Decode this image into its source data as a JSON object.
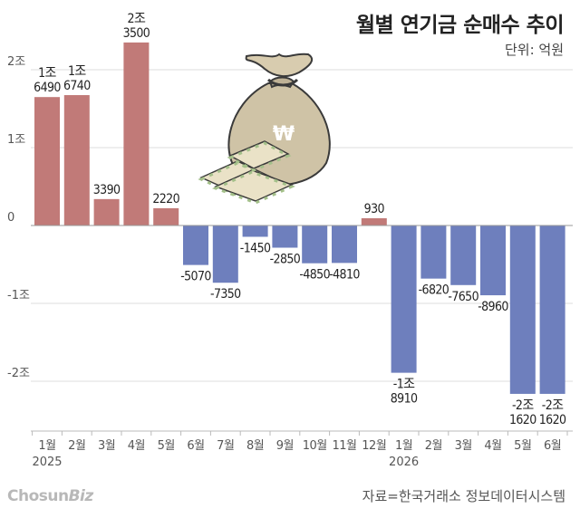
{
  "header": {
    "title": "월별 연기금 순매수 추이",
    "unit": "단위: 억원"
  },
  "footer": {
    "source": "자료=한국거래소 정보데이터시스템",
    "logo_main": "Chosun",
    "logo_sub": "Biz"
  },
  "colors": {
    "positive": "#c17a78",
    "negative": "#6e7fbd",
    "grid": "#dcdcdc",
    "axis": "#999999"
  },
  "chart_data": {
    "type": "bar",
    "title": "월별 연기금 순매수 추이",
    "unit": "억원",
    "ylim": [
      -26000,
      26000
    ],
    "grid": true,
    "y_ticks": [
      {
        "value": 20000,
        "label": "2조"
      },
      {
        "value": 10000,
        "label": "1조"
      },
      {
        "value": 0,
        "label": "0"
      },
      {
        "value": -10000,
        "label": "-1조"
      },
      {
        "value": -20000,
        "label": "-2조"
      }
    ],
    "categories": [
      "1월",
      "2월",
      "3월",
      "4월",
      "5월",
      "6월",
      "7월",
      "8월",
      "9월",
      "10월",
      "11월",
      "12월",
      "1월",
      "2월",
      "3월",
      "4월",
      "5월",
      "6월"
    ],
    "year_labels": [
      {
        "index": 0,
        "label": "2025"
      },
      {
        "index": 12,
        "label": "2026"
      }
    ],
    "values": [
      16490,
      16740,
      3390,
      23500,
      2220,
      -5070,
      -7350,
      -1450,
      -2850,
      -4850,
      -4810,
      930,
      -18910,
      -6820,
      -7650,
      -8960,
      -21620,
      -21620
    ],
    "data_labels": [
      [
        "1조",
        "6490"
      ],
      [
        "1조",
        "6740"
      ],
      [
        "3390"
      ],
      [
        "2조",
        "3500"
      ],
      [
        "2220"
      ],
      [
        "-5070"
      ],
      [
        "-7350"
      ],
      [
        "-1450"
      ],
      [
        "-2850"
      ],
      [
        "-4850"
      ],
      [
        "-4810"
      ],
      [
        "930"
      ],
      [
        "-1조",
        "8910"
      ],
      [
        "-6820"
      ],
      [
        "-7650"
      ],
      [
        "-8960"
      ],
      [
        "-2조",
        "1620"
      ],
      [
        "-2조",
        "1620"
      ]
    ]
  }
}
